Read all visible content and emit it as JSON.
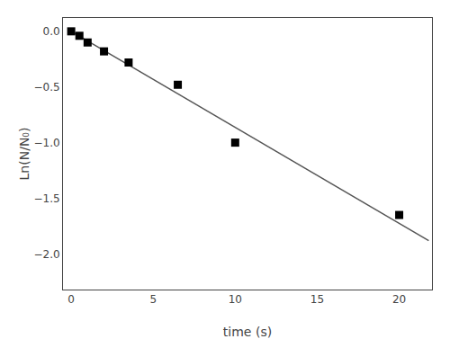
{
  "chart_data": {
    "type": "scatter",
    "xlabel": "time (s)",
    "ylabel": "Ln(N/N₀)",
    "xlim": [
      -0.5,
      22
    ],
    "ylim": [
      -2.32,
      0.12
    ],
    "xticks": [
      0,
      5,
      10,
      15,
      20
    ],
    "yticks": [
      {
        "value": 0.0,
        "label": "0.0"
      },
      {
        "value": -0.5,
        "label": "−0.5"
      },
      {
        "value": -1.0,
        "label": "−1.0"
      },
      {
        "value": -1.5,
        "label": "−1.5"
      },
      {
        "value": -2.0,
        "label": "−2.0"
      }
    ],
    "grid": false,
    "series": [
      {
        "type": "line",
        "color": "#555555",
        "line_style": "solid",
        "x": [
          0.0,
          21.8
        ],
        "values": [
          0.0,
          -1.88
        ]
      },
      {
        "type": "scatter",
        "marker": "square",
        "color": "black",
        "x": [
          0.0,
          0.5,
          1.0,
          2.0,
          3.5,
          6.5,
          10.0,
          20.0
        ],
        "values": [
          0.0,
          -0.04,
          -0.1,
          -0.18,
          -0.28,
          -0.48,
          -1.0,
          -1.65
        ]
      }
    ]
  }
}
